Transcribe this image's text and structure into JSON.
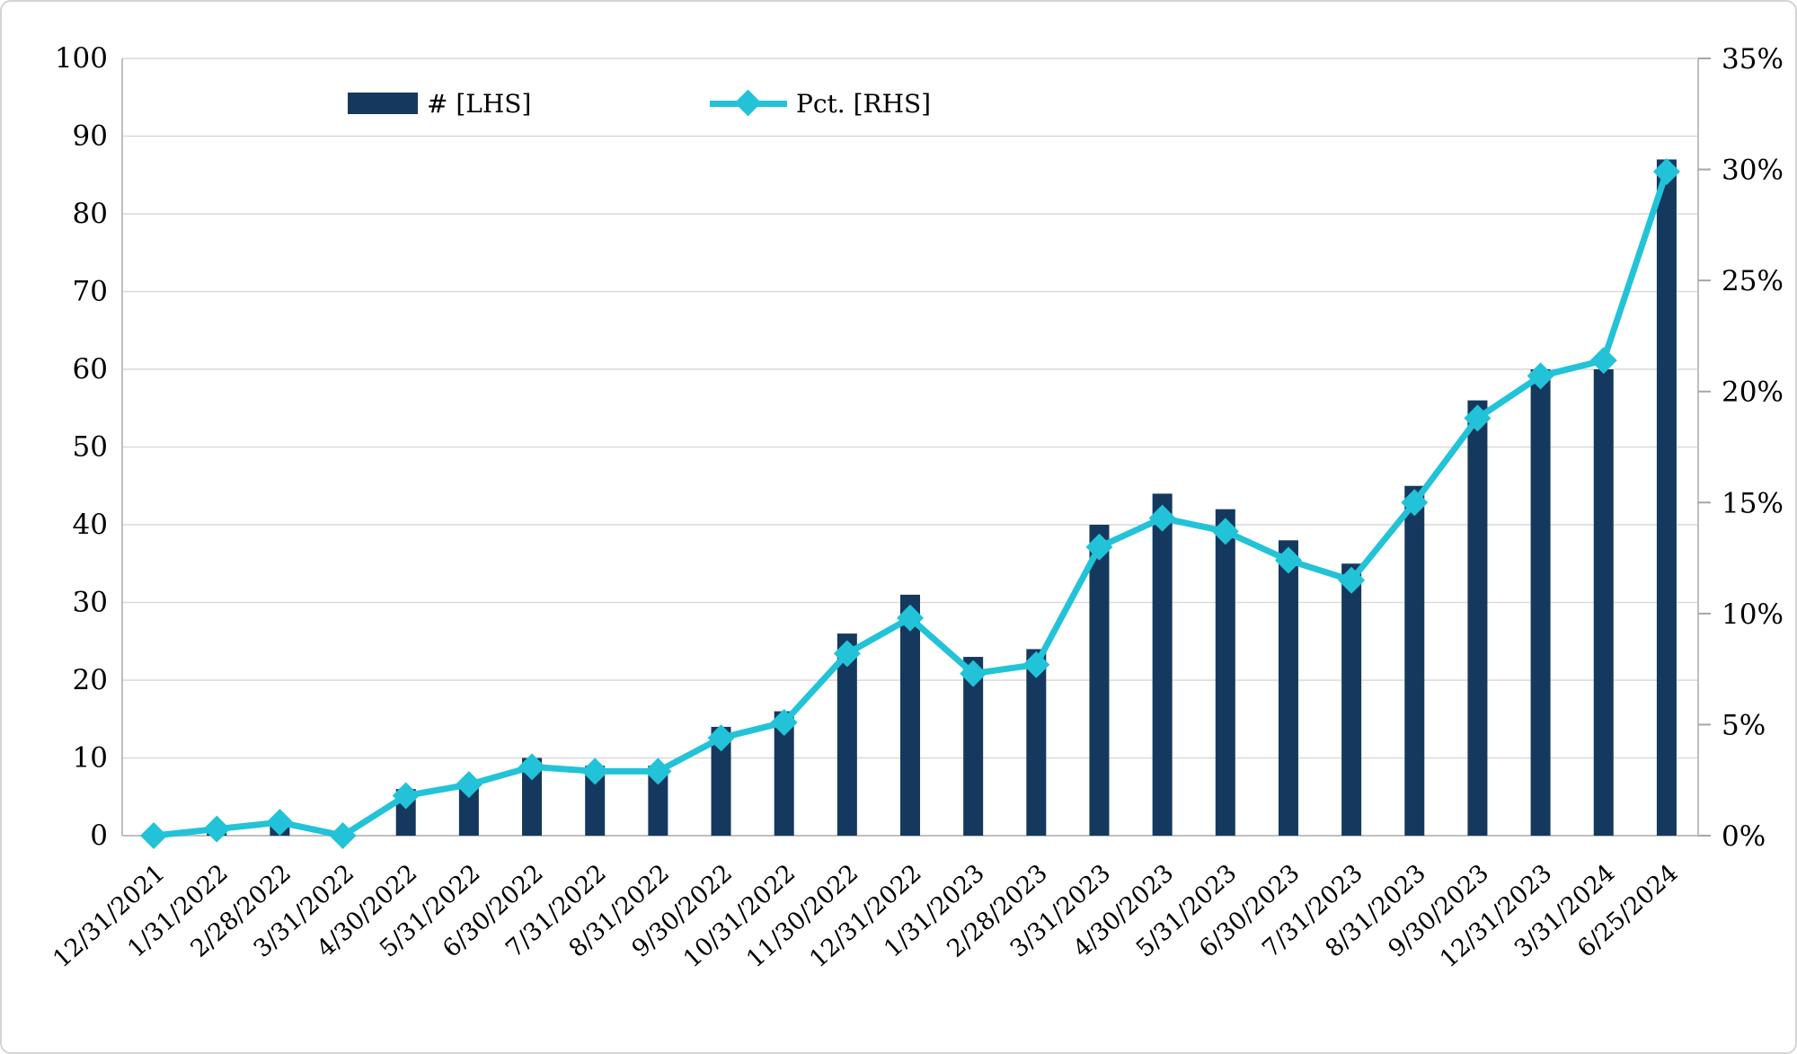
{
  "chart": {
    "legend": [
      {
        "label": "# [LHS]",
        "swatch": "bar"
      },
      {
        "label": "Pct. [RHS]",
        "swatch": "line-diamond"
      }
    ],
    "colors": {
      "bar": "#15395E",
      "line": "#22C3D8",
      "grid": "#D9D9D9",
      "axis": "#BFBFBF",
      "tick": "#A6A6A6",
      "text": "#000000",
      "background": "#FFFFFF"
    }
  },
  "chart_data": {
    "type": "bar+line",
    "title": "",
    "categories": [
      "12/31/2021",
      "1/31/2022",
      "2/28/2022",
      "3/31/2022",
      "4/30/2022",
      "5/31/2022",
      "6/30/2022",
      "7/31/2022",
      "8/31/2022",
      "9/30/2022",
      "10/31/2022",
      "11/30/2022",
      "12/31/2022",
      "1/31/2023",
      "2/28/2023",
      "3/31/2023",
      "4/30/2023",
      "5/31/2023",
      "6/30/2023",
      "7/31/2023",
      "8/31/2023",
      "9/30/2023",
      "12/31/2023",
      "3/31/2024",
      "6/25/2024"
    ],
    "series": [
      {
        "name": "# [LHS]",
        "type": "bar",
        "axis": "left",
        "values": [
          0,
          1,
          2,
          0,
          6,
          7,
          10,
          9,
          9,
          14,
          16,
          26,
          31,
          23,
          24,
          40,
          44,
          42,
          38,
          35,
          45,
          56,
          60,
          60,
          87
        ]
      },
      {
        "name": "Pct. [RHS]",
        "type": "line",
        "axis": "right",
        "marker": "diamond",
        "values": [
          0.0,
          0.3,
          0.6,
          0.0,
          1.8,
          2.3,
          3.1,
          2.9,
          2.9,
          4.4,
          5.1,
          8.2,
          9.8,
          7.3,
          7.7,
          13.0,
          14.3,
          13.7,
          12.4,
          11.5,
          15.0,
          18.8,
          20.7,
          21.4,
          29.9
        ]
      }
    ],
    "left_axis": {
      "min": 0,
      "max": 100,
      "step": 10,
      "labels": [
        "0",
        "10",
        "20",
        "30",
        "40",
        "50",
        "60",
        "70",
        "80",
        "90",
        "100"
      ]
    },
    "right_axis": {
      "min": 0,
      "max": 35,
      "step": 5,
      "labels": [
        "0%",
        "5%",
        "10%",
        "15%",
        "20%",
        "25%",
        "30%",
        "35%"
      ]
    },
    "grid": true,
    "legend_position": "top"
  }
}
